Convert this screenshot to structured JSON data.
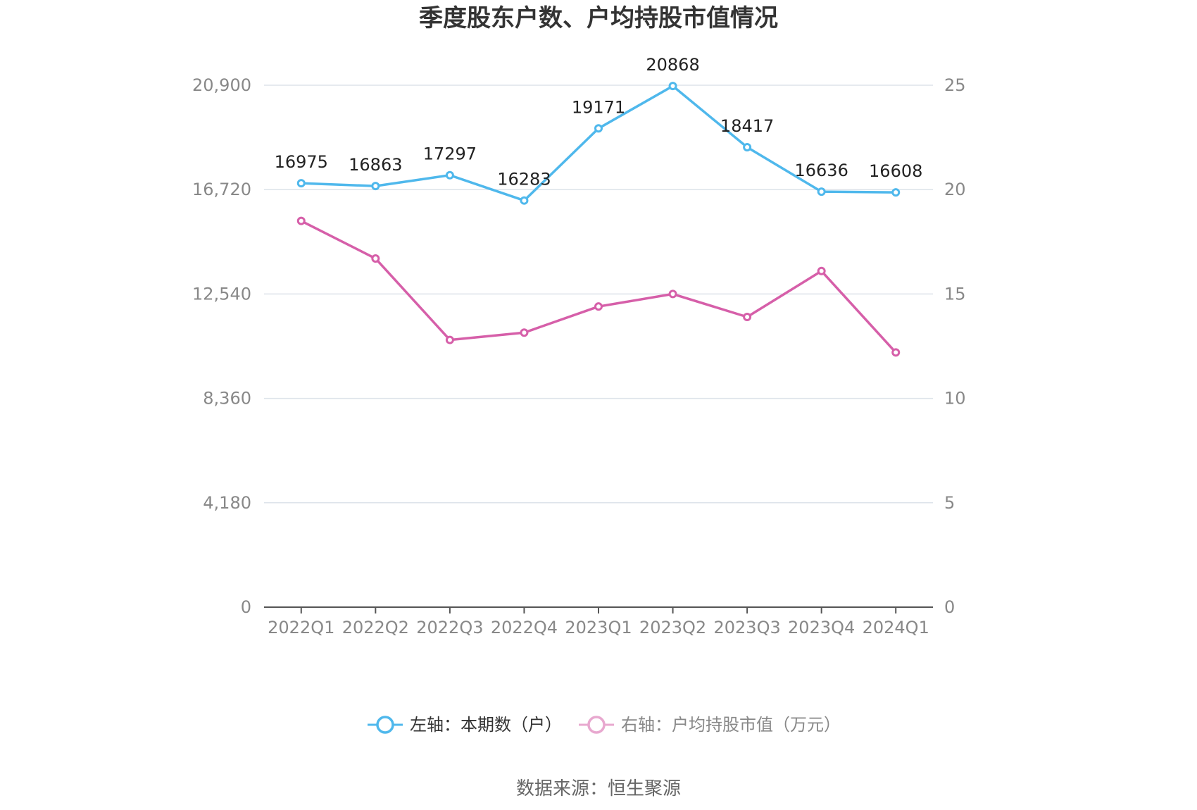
{
  "title": "季度股东户数、户均持股市值情况",
  "source": "数据来源：恒生聚源",
  "colors": {
    "left_series": "#4fb8ec",
    "right_series": "#d65fa9",
    "right_series_legend": "#e8a8cf",
    "grid": "#dde3ea",
    "axis": "#555555"
  },
  "chart_data": {
    "type": "line",
    "categories": [
      "2022Q1",
      "2022Q2",
      "2022Q3",
      "2022Q4",
      "2023Q1",
      "2023Q2",
      "2023Q3",
      "2023Q4",
      "2024Q1"
    ],
    "y_left": {
      "ylim": [
        0,
        20900
      ],
      "ticks": [
        0,
        4180,
        8360,
        12540,
        16720,
        20900
      ],
      "tick_labels": [
        "0",
        "4,180",
        "8,360",
        "12,540",
        "16,720",
        "20,900"
      ]
    },
    "y_right": {
      "ylim": [
        0,
        25
      ],
      "ticks": [
        0,
        5,
        10,
        15,
        20,
        25
      ],
      "tick_labels": [
        "0",
        "5",
        "10",
        "15",
        "20",
        "25"
      ]
    },
    "series": [
      {
        "name": "左轴：本期数（户）",
        "axis": "left",
        "values": [
          16975,
          16863,
          17297,
          16283,
          19171,
          20868,
          18417,
          16636,
          16608
        ],
        "labels": [
          "16975",
          "16863",
          "17297",
          "16283",
          "19171",
          "20868",
          "18417",
          "16636",
          "16608"
        ]
      },
      {
        "name": "右轴：户均持股市值（万元）",
        "axis": "right",
        "values": [
          18.5,
          16.7,
          12.8,
          13.15,
          14.4,
          15.0,
          13.9,
          16.1,
          12.2
        ]
      }
    ],
    "grid": true,
    "legend_position": "bottom"
  }
}
